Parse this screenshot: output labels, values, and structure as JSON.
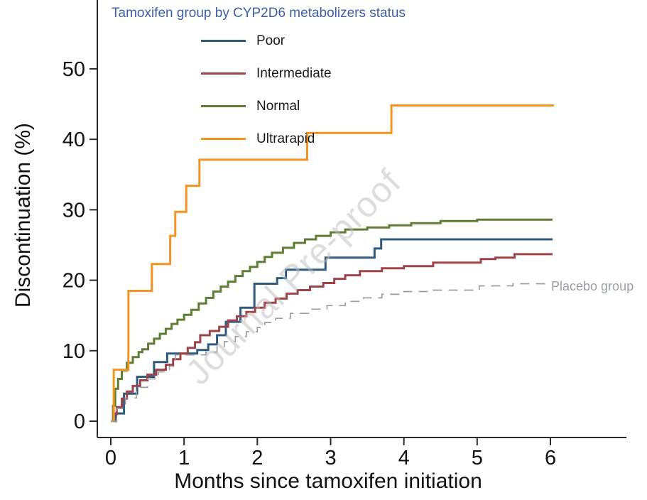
{
  "legend": {
    "title": "Tamoxifen group by CYP2D6 metabolizers status",
    "title_color": "#3c5fa6",
    "items": [
      {
        "label": "Poor",
        "color": "#2e5a7d"
      },
      {
        "label": "Intermediate",
        "color": "#9e4349"
      },
      {
        "label": "Normal",
        "color": "#607d36"
      },
      {
        "label": "Ultrarapid",
        "color": "#f29420"
      }
    ]
  },
  "annotations": {
    "watermark": "Journal Pre-proof",
    "placebo_label": "Placebo group",
    "placebo_label_color": "#9aa0a5"
  },
  "chart_data": {
    "type": "line",
    "subtype": "kaplan-meier-step",
    "title": "Tamoxifen group by CYP2D6 metabolizers status",
    "xlabel": "Months since tamoxifen initiation",
    "ylabel": "Discontinuation (%)",
    "xlim": [
      -0.18,
      7.03
    ],
    "ylim": [
      0,
      60
    ],
    "x_ticks": [
      0,
      1,
      2,
      3,
      4,
      5,
      6
    ],
    "y_ticks": [
      0,
      10,
      20,
      30,
      40,
      50
    ],
    "grid": false,
    "legend_position": "top-left-inside",
    "series": [
      {
        "name": "Poor",
        "color": "#2e5a7d",
        "dash": false,
        "width": 3,
        "points": [
          [
            0,
            0
          ],
          [
            0.07,
            1.1
          ],
          [
            0.18,
            3.9
          ],
          [
            0.36,
            6.3
          ],
          [
            0.59,
            8.4
          ],
          [
            0.77,
            9.6
          ],
          [
            1.18,
            10.1
          ],
          [
            1.33,
            10.9
          ],
          [
            1.45,
            12.2
          ],
          [
            1.57,
            14.1
          ],
          [
            1.77,
            16.1
          ],
          [
            1.96,
            19.5
          ],
          [
            2.27,
            20.3
          ],
          [
            2.39,
            21.5
          ],
          [
            2.93,
            23.2
          ],
          [
            3.6,
            24.5
          ],
          [
            3.69,
            25.8
          ],
          [
            6.03,
            25.8
          ]
        ]
      },
      {
        "name": "Intermediate",
        "color": "#9e4349",
        "dash": false,
        "width": 3,
        "points": [
          [
            0,
            0
          ],
          [
            0.04,
            1.0
          ],
          [
            0.08,
            2.0
          ],
          [
            0.15,
            3.2
          ],
          [
            0.22,
            4.2
          ],
          [
            0.3,
            5.0
          ],
          [
            0.4,
            5.8
          ],
          [
            0.5,
            6.6
          ],
          [
            0.62,
            7.3
          ],
          [
            0.75,
            8.0
          ],
          [
            0.85,
            8.8
          ],
          [
            0.95,
            9.6
          ],
          [
            1.05,
            10.4
          ],
          [
            1.15,
            11.2
          ],
          [
            1.22,
            12.2
          ],
          [
            1.35,
            12.8
          ],
          [
            1.48,
            13.4
          ],
          [
            1.6,
            14.3
          ],
          [
            1.72,
            14.9
          ],
          [
            1.85,
            15.5
          ],
          [
            1.97,
            16.1
          ],
          [
            2.1,
            16.8
          ],
          [
            2.25,
            17.4
          ],
          [
            2.4,
            18.1
          ],
          [
            2.55,
            18.6
          ],
          [
            2.72,
            19.1
          ],
          [
            2.9,
            19.6
          ],
          [
            3.05,
            20.2
          ],
          [
            3.2,
            20.7
          ],
          [
            3.4,
            21.3
          ],
          [
            3.7,
            21.7
          ],
          [
            4.0,
            22.0
          ],
          [
            4.4,
            22.5
          ],
          [
            5.05,
            23.0
          ],
          [
            5.25,
            23.2
          ],
          [
            5.51,
            23.7
          ],
          [
            6.03,
            23.7
          ]
        ]
      },
      {
        "name": "Normal",
        "color": "#607d36",
        "dash": false,
        "width": 3,
        "points": [
          [
            0,
            0
          ],
          [
            0.03,
            2.2
          ],
          [
            0.06,
            4.6
          ],
          [
            0.1,
            6.0
          ],
          [
            0.15,
            7.2
          ],
          [
            0.22,
            8.3
          ],
          [
            0.3,
            9.1
          ],
          [
            0.38,
            9.8
          ],
          [
            0.43,
            10.2
          ],
          [
            0.51,
            11.0
          ],
          [
            0.59,
            11.7
          ],
          [
            0.67,
            12.4
          ],
          [
            0.75,
            13.1
          ],
          [
            0.83,
            13.8
          ],
          [
            0.91,
            14.4
          ],
          [
            1.0,
            15.1
          ],
          [
            1.1,
            15.8
          ],
          [
            1.2,
            16.7
          ],
          [
            1.3,
            17.5
          ],
          [
            1.4,
            18.4
          ],
          [
            1.5,
            19.1
          ],
          [
            1.6,
            19.8
          ],
          [
            1.7,
            20.6
          ],
          [
            1.8,
            21.3
          ],
          [
            1.9,
            21.9
          ],
          [
            2.0,
            22.6
          ],
          [
            2.1,
            23.3
          ],
          [
            2.2,
            23.9
          ],
          [
            2.35,
            24.6
          ],
          [
            2.5,
            25.3
          ],
          [
            2.65,
            25.8
          ],
          [
            2.8,
            26.3
          ],
          [
            3.0,
            26.8
          ],
          [
            3.2,
            27.2
          ],
          [
            3.5,
            27.5
          ],
          [
            3.8,
            27.8
          ],
          [
            4.1,
            28.1
          ],
          [
            4.5,
            28.4
          ],
          [
            5.0,
            28.6
          ],
          [
            6.03,
            28.6
          ]
        ]
      },
      {
        "name": "Ultrarapid",
        "color": "#f29420",
        "dash": false,
        "width": 3,
        "points": [
          [
            0,
            0
          ],
          [
            0.04,
            7.3
          ],
          [
            0.24,
            18.5
          ],
          [
            0.56,
            22.3
          ],
          [
            0.81,
            26.3
          ],
          [
            0.88,
            29.7
          ],
          [
            1.03,
            33.4
          ],
          [
            1.21,
            37.1
          ],
          [
            2.68,
            40.9
          ],
          [
            3.83,
            44.8
          ],
          [
            6.05,
            44.8
          ]
        ]
      },
      {
        "name": "Placebo group",
        "color": "#9d9d9d",
        "dash": true,
        "width": 1.7,
        "points": [
          [
            0,
            0
          ],
          [
            0.08,
            1.8
          ],
          [
            0.2,
            3.3
          ],
          [
            0.35,
            4.8
          ],
          [
            0.5,
            6.0
          ],
          [
            0.65,
            7.0
          ],
          [
            0.8,
            7.8
          ],
          [
            0.88,
            9.4
          ],
          [
            1.3,
            9.8
          ],
          [
            1.45,
            10.6
          ],
          [
            1.55,
            11.3
          ],
          [
            1.7,
            12.0
          ],
          [
            1.85,
            12.7
          ],
          [
            2.0,
            13.3
          ],
          [
            2.1,
            14.0
          ],
          [
            2.25,
            14.6
          ],
          [
            2.45,
            15.3
          ],
          [
            2.7,
            15.9
          ],
          [
            2.95,
            16.4
          ],
          [
            3.2,
            17.0
          ],
          [
            3.45,
            17.5
          ],
          [
            3.7,
            18.0
          ],
          [
            4.0,
            18.4
          ],
          [
            4.4,
            18.6
          ],
          [
            5.03,
            19.2
          ],
          [
            5.49,
            19.5
          ],
          [
            5.95,
            19.5
          ]
        ]
      }
    ]
  }
}
